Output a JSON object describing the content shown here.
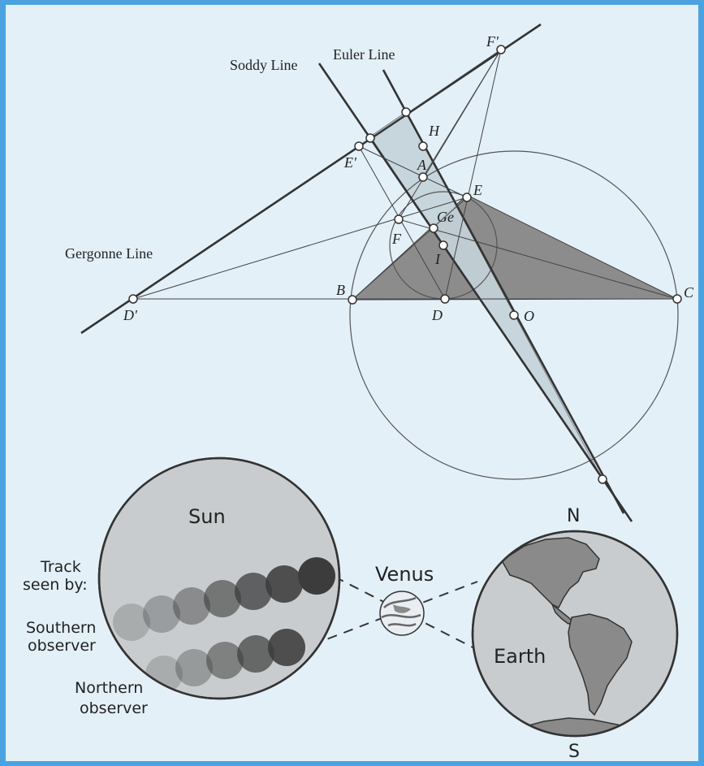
{
  "colors": {
    "frame": "#4aa3e0",
    "panel": "#e3f0f8",
    "triangle": "#8c8c8c",
    "euler_band": "#c5d3da",
    "sun": "#c8ccce",
    "earth_ocean": "#c8ccce",
    "earth_land": "#8a8a8a",
    "transit_dark": "#3c3c3c"
  },
  "geometry": {
    "soddy_line": "Soddy Line",
    "euler_line": "Euler Line",
    "gergonne_line": "Gergonne Line",
    "points": {
      "F_prime": "F'",
      "E_prime": "E'",
      "D_prime": "D'",
      "H": "H",
      "A": "A",
      "E": "E",
      "Ge": "Ge",
      "F": "F",
      "I": "I",
      "B": "B",
      "D": "D",
      "O": "O",
      "C": "C"
    }
  },
  "transit": {
    "sun_label": "Sun",
    "track_label_1": "Track",
    "track_label_2": "seen by:",
    "southern_1": "Southern",
    "southern_2": "observer",
    "northern_1": "Northern",
    "northern_2": "observer",
    "venus_label": "Venus",
    "earth_label": "Earth",
    "north_label": "N",
    "south_label": "S"
  }
}
